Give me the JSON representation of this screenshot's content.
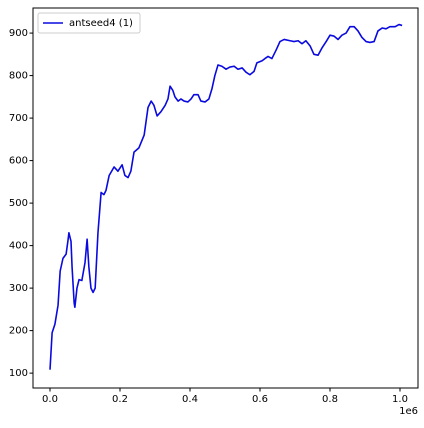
{
  "chart_data": {
    "type": "line",
    "x": [
      0,
      6000,
      14000,
      23000,
      29000,
      37000,
      46000,
      51000,
      54000,
      60000,
      63000,
      69000,
      71000,
      77000,
      83000,
      91000,
      100000,
      106000,
      111000,
      117000,
      123000,
      129000,
      137000,
      146000,
      154000,
      160000,
      169000,
      183000,
      194000,
      206000,
      214000,
      223000,
      231000,
      240000,
      254000,
      269000,
      280000,
      289000,
      297000,
      306000,
      317000,
      329000,
      337000,
      343000,
      351000,
      357000,
      366000,
      374000,
      383000,
      394000,
      403000,
      411000,
      423000,
      431000,
      443000,
      454000,
      463000,
      471000,
      480000,
      491000,
      503000,
      514000,
      526000,
      537000,
      549000,
      560000,
      571000,
      583000,
      591000,
      606000,
      614000,
      623000,
      634000,
      646000,
      657000,
      669000,
      686000,
      697000,
      709000,
      720000,
      731000,
      743000,
      754000,
      766000,
      777000,
      789000,
      800000,
      811000,
      823000,
      834000,
      846000,
      857000,
      869000,
      880000,
      891000,
      903000,
      914000,
      926000,
      937000,
      949000,
      960000,
      971000,
      986000,
      997000,
      1006000
    ],
    "series": [
      {
        "name": "antseed4 (1)",
        "color": "#0a0ae0",
        "values": [
          108,
          195,
          215,
          260,
          340,
          370,
          380,
          410,
          430,
          410,
          350,
          265,
          255,
          300,
          320,
          318,
          360,
          415,
          350,
          300,
          290,
          300,
          430,
          525,
          520,
          530,
          565,
          585,
          575,
          590,
          565,
          560,
          575,
          620,
          630,
          660,
          725,
          740,
          730,
          705,
          715,
          730,
          745,
          775,
          765,
          750,
          740,
          745,
          740,
          738,
          745,
          755,
          755,
          740,
          738,
          745,
          770,
          800,
          825,
          822,
          815,
          820,
          822,
          815,
          818,
          808,
          802,
          810,
          830,
          835,
          840,
          845,
          840,
          860,
          880,
          885,
          882,
          880,
          882,
          875,
          882,
          870,
          850,
          848,
          865,
          880,
          895,
          893,
          885,
          895,
          900,
          915,
          915,
          905,
          890,
          880,
          878,
          880,
          905,
          912,
          910,
          915,
          915,
          920,
          918
        ]
      }
    ],
    "xlim": [
      -48600,
      1051400
    ],
    "ylim": [
      65,
      959
    ],
    "xticks": [
      {
        "value": 0,
        "label": "0.0"
      },
      {
        "value": 200000,
        "label": "0.2"
      },
      {
        "value": 400000,
        "label": "0.4"
      },
      {
        "value": 600000,
        "label": "0.6"
      },
      {
        "value": 800000,
        "label": "0.8"
      },
      {
        "value": 1000000,
        "label": "1.0"
      }
    ],
    "x_offset_label": "1e6",
    "yticks": [
      100,
      200,
      300,
      400,
      500,
      600,
      700,
      800,
      900
    ],
    "grid": false,
    "legend": "upper left"
  }
}
